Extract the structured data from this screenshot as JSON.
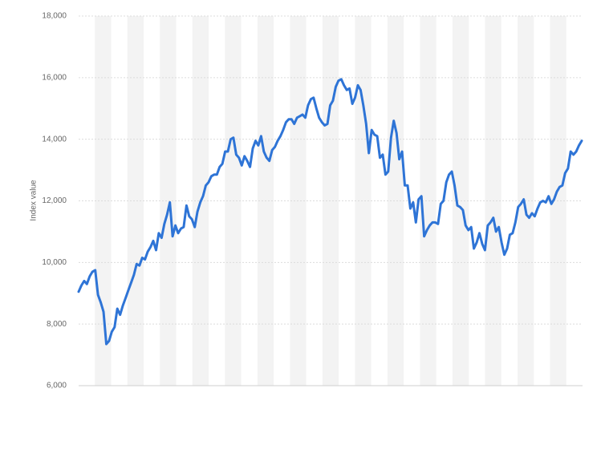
{
  "chart_data": {
    "type": "line",
    "y_label": "Index value",
    "ylim": [
      6000,
      18000
    ],
    "yticks": [
      {
        "value": 6000,
        "label": "6,000"
      },
      {
        "value": 8000,
        "label": "8,000"
      },
      {
        "value": 10000,
        "label": "10,000"
      },
      {
        "value": 12000,
        "label": "12,000"
      },
      {
        "value": 14000,
        "label": "14,000"
      },
      {
        "value": 16000,
        "label": "16,000"
      },
      {
        "value": 18000,
        "label": "18,000"
      }
    ],
    "grid": true,
    "series": [
      {
        "color": "#2e74d6",
        "values": [
          9050,
          9250,
          9400,
          9300,
          9550,
          9700,
          9750,
          8950,
          8700,
          8400,
          7350,
          7450,
          7750,
          7900,
          8500,
          8300,
          8600,
          8850,
          9100,
          9350,
          9600,
          9950,
          9900,
          10150,
          10100,
          10350,
          10500,
          10700,
          10400,
          10950,
          10800,
          11250,
          11550,
          11950,
          10850,
          11200,
          10950,
          11100,
          11150,
          11850,
          11500,
          11400,
          11150,
          11650,
          11950,
          12150,
          12500,
          12600,
          12800,
          12850,
          12850,
          13100,
          13200,
          13600,
          13600,
          14000,
          14050,
          13500,
          13400,
          13150,
          13450,
          13300,
          13100,
          13700,
          13950,
          13800,
          14100,
          13600,
          13400,
          13300,
          13650,
          13750,
          13950,
          14100,
          14300,
          14550,
          14650,
          14650,
          14500,
          14700,
          14750,
          14800,
          14700,
          15100,
          15300,
          15350,
          15000,
          14700,
          14550,
          14450,
          14500,
          15100,
          15250,
          15700,
          15900,
          15950,
          15750,
          15600,
          15650,
          15150,
          15350,
          15750,
          15600,
          15100,
          14500,
          13550,
          14300,
          14150,
          14100,
          13400,
          13500,
          12850,
          12950,
          14050,
          14600,
          14200,
          13350,
          13600,
          12500,
          12500,
          11750,
          11950,
          11300,
          12050,
          12150,
          10850,
          11050,
          11200,
          11300,
          11300,
          11250,
          11900,
          12000,
          12600,
          12850,
          12950,
          12500,
          11850,
          11800,
          11700,
          11200,
          11050,
          11150,
          10450,
          10650,
          10950,
          10600,
          10400,
          11200,
          11300,
          11450,
          11000,
          11150,
          10650,
          10250,
          10450,
          10900,
          10950,
          11300,
          11800,
          11900,
          12050,
          11550,
          11450,
          11600,
          11500,
          11750,
          11950,
          12000,
          11950,
          12150,
          11900,
          12050,
          12300,
          12450,
          12500,
          12900,
          13050,
          13600,
          13500,
          13600,
          13800,
          13950
        ]
      }
    ]
  }
}
